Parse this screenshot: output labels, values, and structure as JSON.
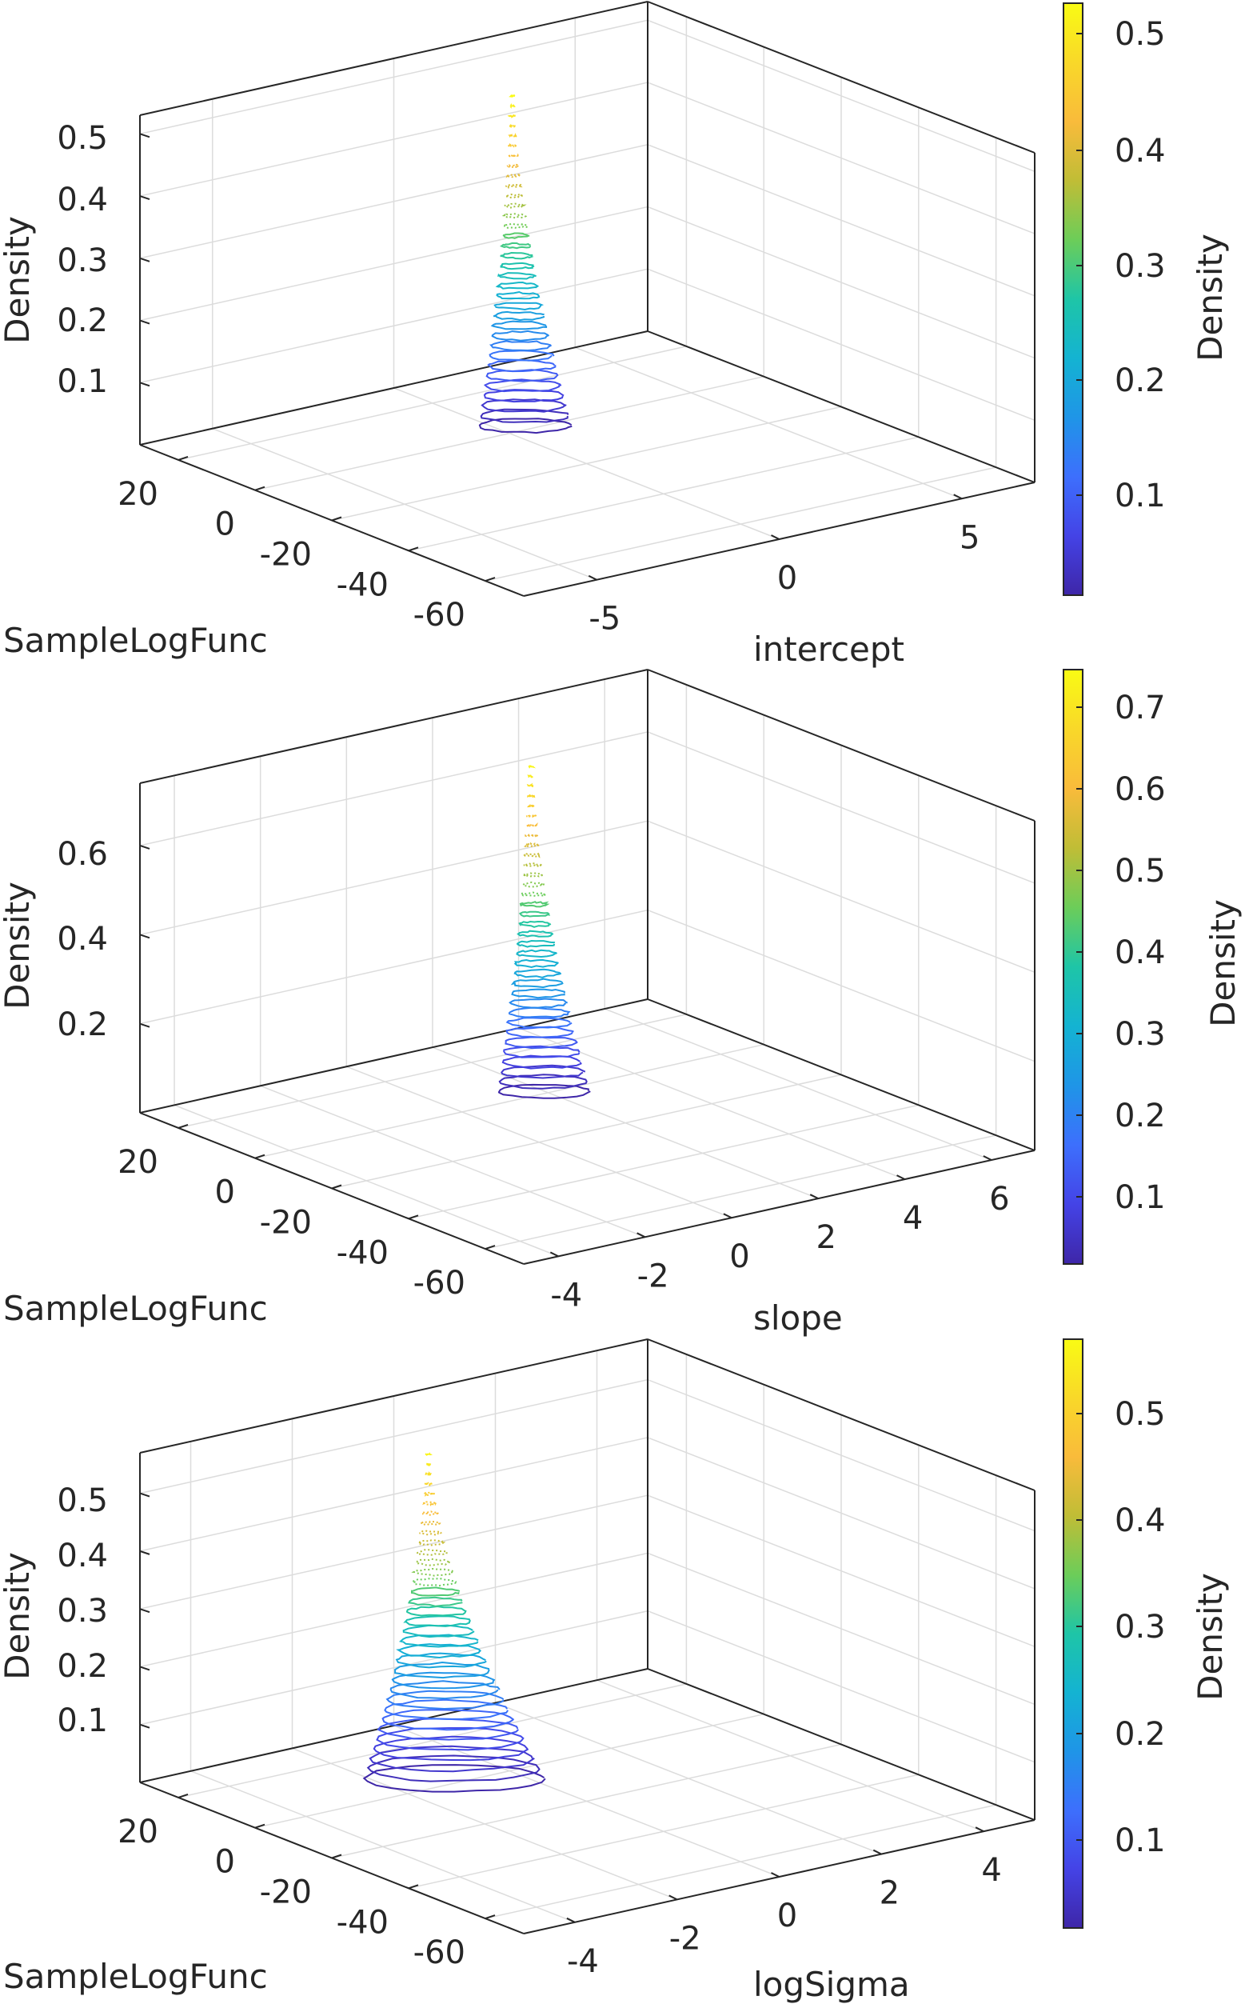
{
  "colormap": [
    "#3e26a8",
    "#4443e6",
    "#3d6ffd",
    "#1f95e7",
    "#14b3d2",
    "#1ec5a7",
    "#6ccd59",
    "#c0bd36",
    "#f9bb3b",
    "#f9d829",
    "#f9fb14"
  ],
  "chart_data": [
    {
      "type": "3d-scatter",
      "xlabel": "SampleLogFunc",
      "ylabel": "intercept",
      "zlabel": "Density",
      "colorbar_label": "Density",
      "x_ticks": [
        "20",
        "0",
        "-20",
        "-40",
        "-60"
      ],
      "y_ticks": [
        "-5",
        "0",
        "5"
      ],
      "z_ticks": [
        "0.1",
        "0.2",
        "0.3",
        "0.4",
        "0.5"
      ],
      "colorbar_ticks": [
        "0.1",
        "0.2",
        "0.3",
        "0.4",
        "0.5"
      ],
      "colorbar_range": [
        0.02,
        0.53
      ],
      "zlim": [
        0,
        0.53
      ],
      "peak_density": 0.53,
      "peak_sample_log_func": -8,
      "peak_param": 0.5
    },
    {
      "type": "3d-scatter",
      "xlabel": "SampleLogFunc",
      "ylabel": "slope",
      "zlabel": "Density",
      "colorbar_label": "Density",
      "x_ticks": [
        "20",
        "0",
        "-20",
        "-40",
        "-60"
      ],
      "y_ticks": [
        "-4",
        "-2",
        "0",
        "2",
        "4",
        "6"
      ],
      "z_ticks": [
        "0.2",
        "0.4",
        "0.6"
      ],
      "colorbar_ticks": [
        "0.1",
        "0.2",
        "0.3",
        "0.4",
        "0.5",
        "0.6",
        "0.7"
      ],
      "colorbar_range": [
        0.02,
        0.74
      ],
      "zlim": [
        0,
        0.74
      ],
      "peak_density": 0.73,
      "peak_sample_log_func": -8,
      "peak_param": 1.2
    },
    {
      "type": "3d-scatter",
      "xlabel": "SampleLogFunc",
      "ylabel": "logSigma",
      "zlabel": "Density",
      "colorbar_label": "Density",
      "x_ticks": [
        "20",
        "0",
        "-20",
        "-40",
        "-60"
      ],
      "y_ticks": [
        "-4",
        "-2",
        "0",
        "2",
        "4"
      ],
      "z_ticks": [
        "0.1",
        "0.2",
        "0.3",
        "0.4",
        "0.5"
      ],
      "colorbar_ticks": [
        "0.1",
        "0.2",
        "0.3",
        "0.4",
        "0.5"
      ],
      "colorbar_range": [
        0.02,
        0.57
      ],
      "zlim": [
        0,
        0.57
      ],
      "peak_density": 0.56,
      "peak_sample_log_func": -10,
      "peak_param": -1
    }
  ]
}
